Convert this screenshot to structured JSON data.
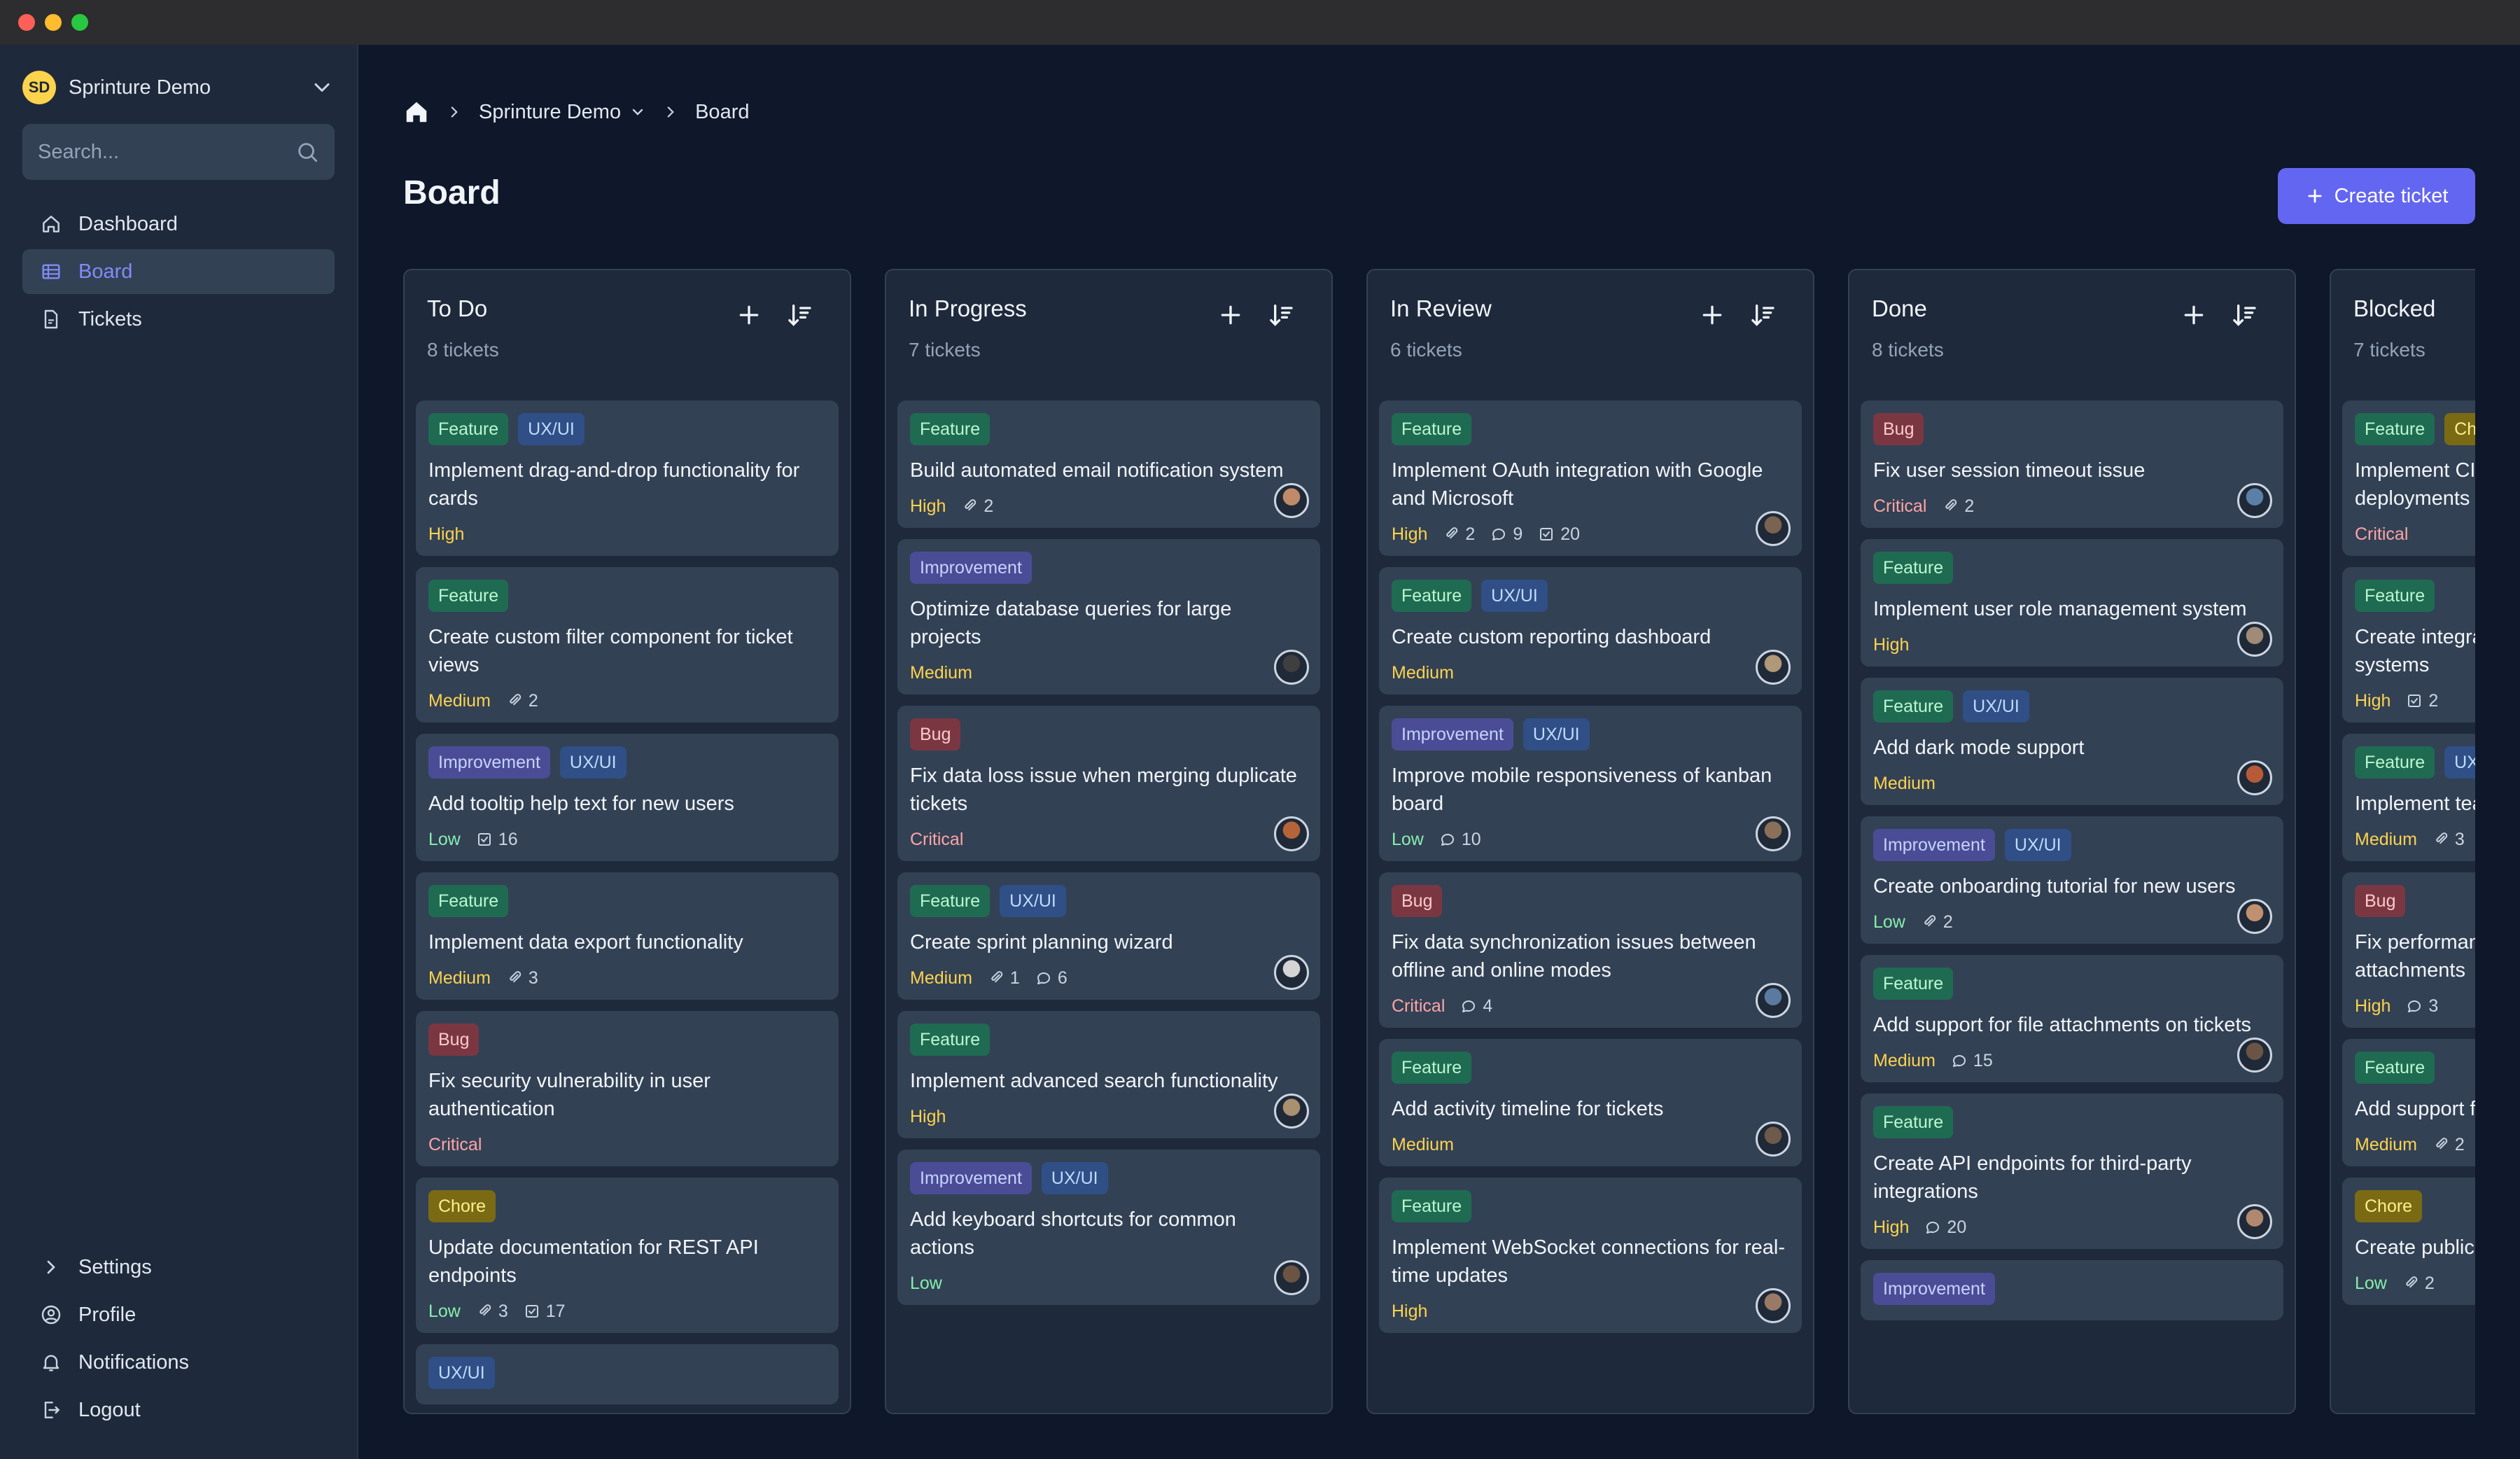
{
  "workspace": {
    "initials": "SD",
    "name": "Sprinture Demo"
  },
  "search": {
    "placeholder": "Search..."
  },
  "nav": [
    {
      "label": "Dashboard",
      "icon": "home-icon",
      "active": false
    },
    {
      "label": "Board",
      "icon": "board-icon",
      "active": true
    },
    {
      "label": "Tickets",
      "icon": "ticket-icon",
      "active": false
    }
  ],
  "nav_bottom": [
    {
      "label": "Settings",
      "icon": "chevron-right-icon"
    },
    {
      "label": "Profile",
      "icon": "user-icon"
    },
    {
      "label": "Notifications",
      "icon": "bell-icon"
    },
    {
      "label": "Logout",
      "icon": "logout-icon"
    }
  ],
  "breadcrumb": {
    "project": "Sprinture Demo",
    "current": "Board"
  },
  "page_title": "Board",
  "create_button": "Create ticket",
  "columns": [
    {
      "title": "To Do",
      "count": "8 tickets",
      "cards": [
        {
          "tags": [
            "Feature",
            "UX/UI"
          ],
          "title": "Implement drag-and-drop functionality for cards",
          "priority": "High",
          "meta": [],
          "avatar": false
        },
        {
          "tags": [
            "Feature"
          ],
          "title": "Create custom filter component for ticket views",
          "priority": "Medium",
          "meta": [
            {
              "icon": "paperclip-icon",
              "value": "2"
            }
          ],
          "avatar": false
        },
        {
          "tags": [
            "Improvement",
            "UX/UI"
          ],
          "title": "Add tooltip help text for new users",
          "priority": "Low",
          "meta": [
            {
              "icon": "checkbox-icon",
              "value": "16"
            }
          ],
          "avatar": false
        },
        {
          "tags": [
            "Feature"
          ],
          "title": "Implement data export functionality",
          "priority": "Medium",
          "meta": [
            {
              "icon": "paperclip-icon",
              "value": "3"
            }
          ],
          "avatar": false
        },
        {
          "tags": [
            "Bug"
          ],
          "title": "Fix security vulnerability in user authentication",
          "priority": "Critical",
          "meta": [],
          "avatar": false
        },
        {
          "tags": [
            "Chore"
          ],
          "title": "Update documentation for REST API endpoints",
          "priority": "Low",
          "meta": [
            {
              "icon": "paperclip-icon",
              "value": "3"
            },
            {
              "icon": "checkbox-icon",
              "value": "17"
            }
          ],
          "avatar": false
        },
        {
          "tags": [
            "UX/UI"
          ],
          "title": "",
          "priority": "",
          "meta": [],
          "avatar": false
        }
      ]
    },
    {
      "title": "In Progress",
      "count": "7 tickets",
      "cards": [
        {
          "tags": [
            "Feature"
          ],
          "title": "Build automated email notification system",
          "priority": "High",
          "meta": [
            {
              "icon": "paperclip-icon",
              "value": "2"
            }
          ],
          "avatar": true,
          "avatar_color": "#c08a6a"
        },
        {
          "tags": [
            "Improvement"
          ],
          "title": "Optimize database queries for large projects",
          "priority": "Medium",
          "meta": [],
          "avatar": true,
          "avatar_color": "#3f3f3f"
        },
        {
          "tags": [
            "Bug"
          ],
          "title": "Fix data loss issue when merging duplicate tickets",
          "priority": "Critical",
          "meta": [],
          "avatar": true,
          "avatar_color": "#b5643a"
        },
        {
          "tags": [
            "Feature",
            "UX/UI"
          ],
          "title": "Create sprint planning wizard",
          "priority": "Medium",
          "meta": [
            {
              "icon": "paperclip-icon",
              "value": "1"
            },
            {
              "icon": "comment-icon",
              "value": "6"
            }
          ],
          "avatar": true,
          "avatar_color": "#d4d4d4"
        },
        {
          "tags": [
            "Feature"
          ],
          "title": "Implement advanced search functionality",
          "priority": "High",
          "meta": [],
          "avatar": true,
          "avatar_color": "#a89070"
        },
        {
          "tags": [
            "Improvement",
            "UX/UI"
          ],
          "title": "Add keyboard shortcuts for common actions",
          "priority": "Low",
          "meta": [],
          "avatar": true,
          "avatar_color": "#6b5444"
        }
      ]
    },
    {
      "title": "In Review",
      "count": "6 tickets",
      "cards": [
        {
          "tags": [
            "Feature"
          ],
          "title": "Implement OAuth integration with Google and Microsoft",
          "priority": "High",
          "meta": [
            {
              "icon": "paperclip-icon",
              "value": "2"
            },
            {
              "icon": "comment-icon",
              "value": "9"
            },
            {
              "icon": "checkbox-icon",
              "value": "20"
            }
          ],
          "avatar": true,
          "avatar_color": "#7a6350"
        },
        {
          "tags": [
            "Feature",
            "UX/UI"
          ],
          "title": "Create custom reporting dashboard",
          "priority": "Medium",
          "meta": [],
          "avatar": true,
          "avatar_color": "#b09878"
        },
        {
          "tags": [
            "Improvement",
            "UX/UI"
          ],
          "title": "Improve mobile responsiveness of kanban board",
          "priority": "Low",
          "meta": [
            {
              "icon": "comment-icon",
              "value": "10"
            }
          ],
          "avatar": true,
          "avatar_color": "#8a7058"
        },
        {
          "tags": [
            "Bug"
          ],
          "title": "Fix data synchronization issues between offline and online modes",
          "priority": "Critical",
          "meta": [
            {
              "icon": "comment-icon",
              "value": "4"
            }
          ],
          "avatar": true,
          "avatar_color": "#5a7aa0"
        },
        {
          "tags": [
            "Feature"
          ],
          "title": "Add activity timeline for tickets",
          "priority": "Medium",
          "meta": [],
          "avatar": true,
          "avatar_color": "#6d5a4a"
        },
        {
          "tags": [
            "Feature"
          ],
          "title": "Implement WebSocket connections for real-time updates",
          "priority": "High",
          "meta": [],
          "avatar": true,
          "avatar_color": "#9a7a66"
        }
      ]
    },
    {
      "title": "Done",
      "count": "8 tickets",
      "cards": [
        {
          "tags": [
            "Bug"
          ],
          "title": "Fix user session timeout issue",
          "priority": "Critical",
          "meta": [
            {
              "icon": "paperclip-icon",
              "value": "2"
            }
          ],
          "avatar": true,
          "avatar_color": "#5a80a8"
        },
        {
          "tags": [
            "Feature"
          ],
          "title": "Implement user role management system",
          "priority": "High",
          "meta": [],
          "avatar": true,
          "avatar_color": "#a08a78"
        },
        {
          "tags": [
            "Feature",
            "UX/UI"
          ],
          "title": "Add dark mode support",
          "priority": "Medium",
          "meta": [],
          "avatar": true,
          "avatar_color": "#b85a3a"
        },
        {
          "tags": [
            "Improvement",
            "UX/UI"
          ],
          "title": "Create onboarding tutorial for new users",
          "priority": "Low",
          "meta": [
            {
              "icon": "paperclip-icon",
              "value": "2"
            }
          ],
          "avatar": true,
          "avatar_color": "#c09070"
        },
        {
          "tags": [
            "Feature"
          ],
          "title": "Add support for file attachments on tickets",
          "priority": "Medium",
          "meta": [
            {
              "icon": "comment-icon",
              "value": "15"
            }
          ],
          "avatar": true,
          "avatar_color": "#6a5444"
        },
        {
          "tags": [
            "Feature"
          ],
          "title": "Create API endpoints for third-party integrations",
          "priority": "High",
          "meta": [
            {
              "icon": "comment-icon",
              "value": "20"
            }
          ],
          "avatar": true,
          "avatar_color": "#b08870"
        },
        {
          "tags": [
            "Improvement"
          ],
          "title": "",
          "priority": "",
          "meta": [],
          "avatar": false
        }
      ]
    },
    {
      "title": "Blocked",
      "count": "7 tickets",
      "cards": [
        {
          "tags": [
            "Feature",
            "Chore"
          ],
          "title": "Implement CI/CD pipeline for automated deployments",
          "priority": "Critical",
          "meta": [],
          "avatar": false
        },
        {
          "tags": [
            "Feature"
          ],
          "title": "Create integration with external CRM systems",
          "priority": "High",
          "meta": [
            {
              "icon": "checkbox-icon",
              "value": "2"
            }
          ],
          "avatar": false
        },
        {
          "tags": [
            "Feature",
            "UX/UI"
          ],
          "title": "Implement team workspaces",
          "priority": "Medium",
          "meta": [
            {
              "icon": "paperclip-icon",
              "value": "3"
            }
          ],
          "avatar": false
        },
        {
          "tags": [
            "Bug"
          ],
          "title": "Fix performance issues with large attachments",
          "priority": "High",
          "meta": [
            {
              "icon": "comment-icon",
              "value": "3"
            }
          ],
          "avatar": false
        },
        {
          "tags": [
            "Feature"
          ],
          "title": "Add support for custom fields",
          "priority": "Medium",
          "meta": [
            {
              "icon": "paperclip-icon",
              "value": "2"
            }
          ],
          "avatar": false
        },
        {
          "tags": [
            "Chore"
          ],
          "title": "Create public API documentation",
          "priority": "Low",
          "meta": [
            {
              "icon": "paperclip-icon",
              "value": "2"
            }
          ],
          "avatar": false
        }
      ]
    }
  ]
}
